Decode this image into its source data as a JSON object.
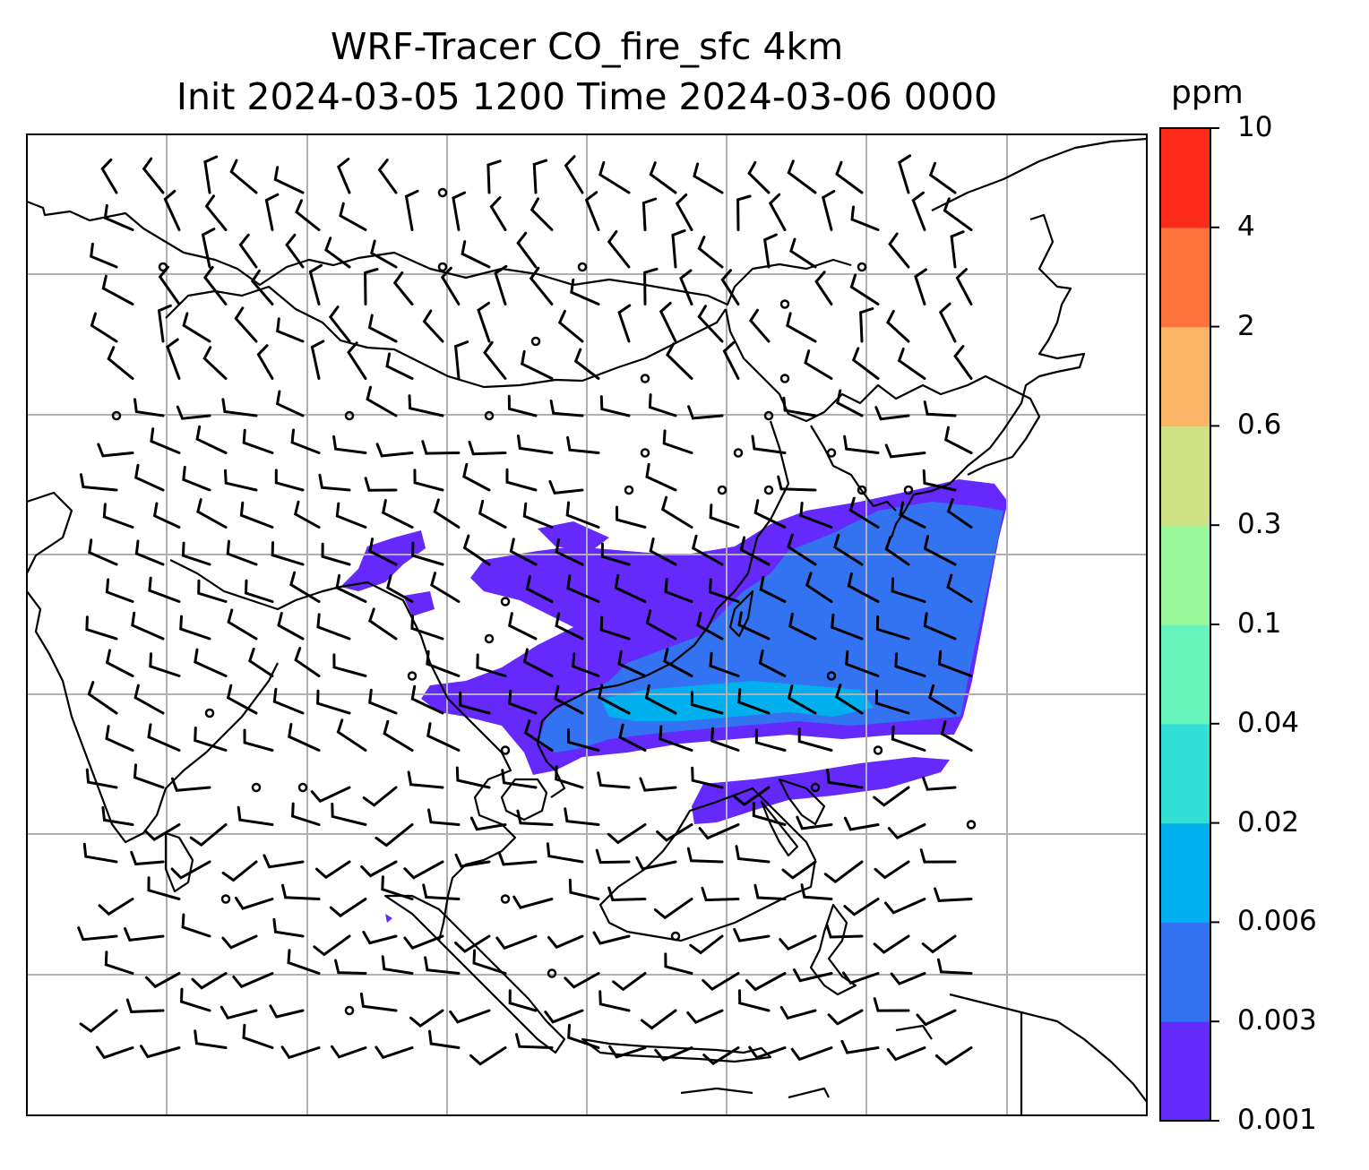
{
  "title": {
    "line1": "WRF-Tracer CO_fire_sfc 4km",
    "line2": "Init 2024-03-05 1200 Time 2024-03-06 0000"
  },
  "colorbar": {
    "units": "ppm",
    "tick_labels": [
      "0.001",
      "0.003",
      "0.006",
      "0.02",
      "0.04",
      "0.1",
      "0.3",
      "0.6",
      "2",
      "4",
      "10"
    ],
    "colors": [
      "#6529fc",
      "#3373f2",
      "#00b0ee",
      "#34e0d6",
      "#66f5ba",
      "#98f99c",
      "#d0e185",
      "#fcb466",
      "#fd733d",
      "#fb2a1a"
    ]
  },
  "map": {
    "gridline_color": "#b0b0b0",
    "coastline_color": "#000000"
  }
}
